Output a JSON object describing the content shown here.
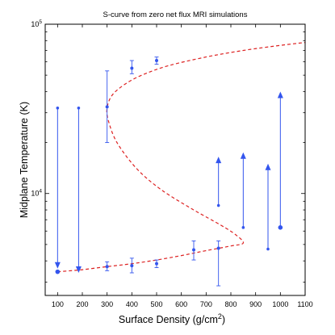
{
  "chart_data": {
    "type": "scatter",
    "title": "S-curve from zero net flux MRI simulations",
    "xlabel": "Surface Density (g/cm",
    "xlabel_sup": "2",
    "xlabel_end": ")",
    "ylabel": "Midplane Temperature (K)",
    "xlim": [
      50,
      1100
    ],
    "ylim": [
      2500,
      100000
    ],
    "yscale": "log",
    "x_ticks": [
      100,
      200,
      300,
      400,
      500,
      600,
      700,
      800,
      900,
      1000,
      1100
    ],
    "x_tick_labels": [
      "100",
      "200",
      "300",
      "400",
      "500",
      "600",
      "700",
      "800",
      "900",
      "1000",
      "1100"
    ],
    "y_major_ticks": [
      {
        "value": 10000,
        "base": "10",
        "exp": "4"
      },
      {
        "value": 100000,
        "base": "10",
        "exp": "5"
      }
    ],
    "grid": false,
    "legend": "none",
    "colors": {
      "points": "#3355ee",
      "s_curve": "#dd2222"
    },
    "s_curve": {
      "style": "dashed",
      "points": [
        [
          100,
          3450
        ],
        [
          200,
          3550
        ],
        [
          300,
          3700
        ],
        [
          400,
          3850
        ],
        [
          500,
          4050
        ],
        [
          600,
          4300
        ],
        [
          700,
          4600
        ],
        [
          800,
          4900
        ],
        [
          850,
          5100
        ],
        [
          820,
          5700
        ],
        [
          760,
          6500
        ],
        [
          650,
          8000
        ],
        [
          520,
          10500
        ],
        [
          420,
          14000
        ],
        [
          340,
          20000
        ],
        [
          305,
          27000
        ],
        [
          300,
          32000
        ],
        [
          320,
          38000
        ],
        [
          370,
          44000
        ],
        [
          440,
          50000
        ],
        [
          550,
          57000
        ],
        [
          700,
          64000
        ],
        [
          850,
          70000
        ],
        [
          1000,
          75000
        ],
        [
          1100,
          78000
        ]
      ]
    },
    "error_bars": [
      {
        "x": 300,
        "y": 3700,
        "ymin": 3500,
        "ymax": 3950
      },
      {
        "x": 300,
        "y": 32500,
        "ymin": 20000,
        "ymax": 53000
      },
      {
        "x": 400,
        "y": 3750,
        "ymin": 3400,
        "ymax": 4150
      },
      {
        "x": 400,
        "y": 55000,
        "ymin": 51000,
        "ymax": 61000
      },
      {
        "x": 500,
        "y": 3850,
        "ymin": 3650,
        "ymax": 4050
      },
      {
        "x": 500,
        "y": 61000,
        "ymin": 58000,
        "ymax": 64000
      },
      {
        "x": 650,
        "y": 4650,
        "ymin": 4050,
        "ymax": 5250
      },
      {
        "x": 750,
        "y": 4750,
        "ymin": 2850,
        "ymax": 5250
      }
    ],
    "evolution_arrows": [
      {
        "x": 100,
        "from": 32000,
        "to": 3600
      },
      {
        "x": 185,
        "from": 32000,
        "to": 3400
      },
      {
        "x": 750,
        "from": 8500,
        "to": 16500
      },
      {
        "x": 850,
        "from": 6300,
        "to": 17500
      },
      {
        "x": 950,
        "from": 4700,
        "to": 15000
      },
      {
        "x": 1000,
        "from": 6300,
        "to": 40000
      }
    ],
    "points": [
      {
        "x": 100,
        "y": 3450
      },
      {
        "x": 1000,
        "y": 6300
      }
    ]
  }
}
